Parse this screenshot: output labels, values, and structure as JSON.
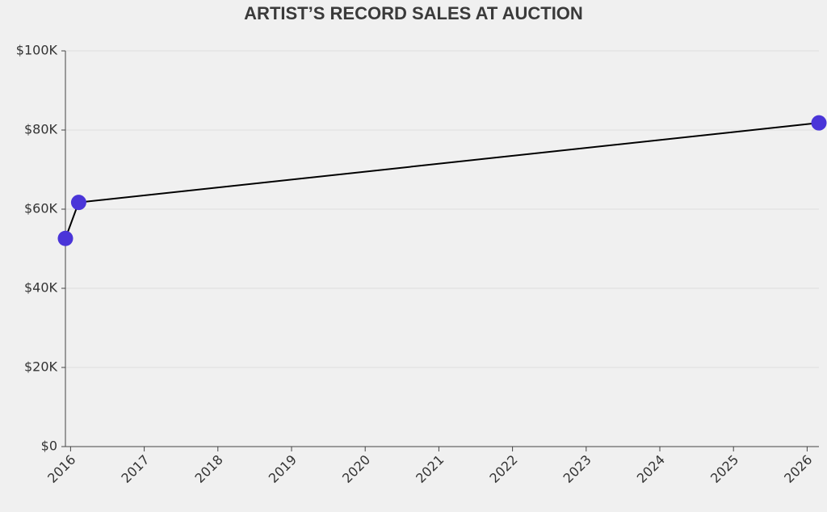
{
  "chart_data": {
    "type": "line",
    "title": "ARTIST’S RECORD SALES AT AUCTION",
    "x": [
      2015.93,
      2016.11,
      2026.16
    ],
    "series": [
      {
        "color": "#4a35d8",
        "values": [
          52600,
          61700,
          81800
        ]
      }
    ],
    "xlim": [
      2015.93,
      2026.16
    ],
    "xticks": [
      2016,
      2017,
      2018,
      2019,
      2020,
      2021,
      2022,
      2023,
      2024,
      2025,
      2026
    ],
    "ylim": [
      0,
      100000
    ],
    "yticks": [
      {
        "value": 0,
        "label": "$0"
      },
      {
        "value": 20000,
        "label": "$20K"
      },
      {
        "value": 40000,
        "label": "$40K"
      },
      {
        "value": 60000,
        "label": "$60K"
      },
      {
        "value": 80000,
        "label": "$80K"
      },
      {
        "value": 100000,
        "label": "$100K"
      }
    ],
    "grid": true
  }
}
